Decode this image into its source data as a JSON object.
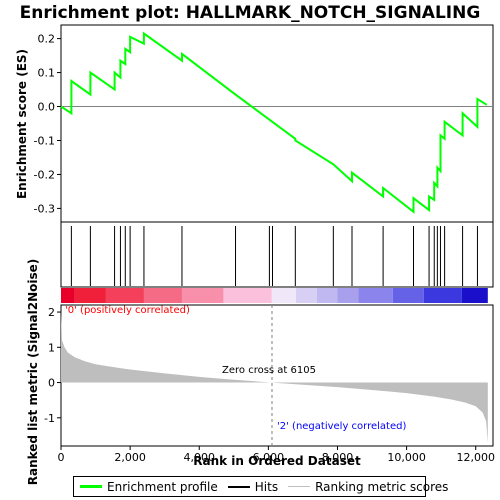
{
  "title": "Enrichment plot: HALLMARK_NOTCH_SIGNALING",
  "colors": {
    "enrichment": "#00ff00",
    "hits": "#000000",
    "metric_fill": "#bebebe",
    "positive_label": "#ff0000",
    "negative_label": "#0000ff",
    "zero_line": "#808080"
  },
  "chart_data": [
    {
      "type": "line",
      "name": "enrichment-profile",
      "ylabel": "Enrichment score (ES)",
      "xlim": [
        0,
        12500
      ],
      "ylim": [
        -0.34,
        0.24
      ],
      "yticks": [
        "0.2",
        "0.1",
        "0.0",
        "-0.1",
        "-0.2",
        "-0.3"
      ],
      "ytick_values": [
        0.2,
        0.1,
        0.0,
        -0.1,
        -0.2,
        -0.3
      ],
      "x": [
        0,
        300,
        300,
        850,
        850,
        1550,
        1550,
        1720,
        1720,
        1860,
        1860,
        2000,
        2000,
        2400,
        2400,
        3500,
        3500,
        5050,
        5050,
        6780,
        6780,
        7880,
        7880,
        8420,
        8420,
        9320,
        9320,
        10200,
        10200,
        10650,
        10650,
        10800,
        10800,
        10890,
        10890,
        10980,
        10980,
        11100,
        11100,
        11620,
        11620,
        12050,
        12050,
        12320
      ],
      "y": [
        0.0,
        -0.02,
        0.075,
        0.035,
        0.1,
        0.05,
        0.1,
        0.085,
        0.135,
        0.125,
        0.17,
        0.16,
        0.205,
        0.185,
        0.215,
        0.135,
        0.155,
        0.035,
        0.035,
        -0.095,
        -0.1,
        -0.17,
        -0.17,
        -0.22,
        -0.195,
        -0.265,
        -0.24,
        -0.31,
        -0.27,
        -0.305,
        -0.265,
        -0.275,
        -0.225,
        -0.235,
        -0.18,
        -0.19,
        -0.085,
        -0.095,
        -0.045,
        -0.085,
        -0.02,
        -0.06,
        0.022,
        0.005
      ]
    },
    {
      "type": "scatter",
      "name": "hits",
      "x": [
        300,
        850,
        1550,
        1720,
        1860,
        2000,
        2400,
        3500,
        5050,
        6030,
        6120,
        6780,
        7880,
        8420,
        9320,
        10200,
        10650,
        10800,
        10890,
        10980,
        11100,
        11620,
        12050
      ]
    },
    {
      "type": "area",
      "name": "ranked-metric",
      "xlabel": "Rank in Ordered Dataset",
      "ylabel": "Ranked list metric (Signal2Noise)",
      "xlim": [
        0,
        12500
      ],
      "ylim": [
        -1.8,
        2.2
      ],
      "x": [
        0,
        30,
        100,
        200,
        400,
        700,
        1000,
        1500,
        2000,
        3000,
        4000,
        5000,
        6105,
        7000,
        8000,
        9000,
        10000,
        10800,
        11300,
        11700,
        12000,
        12200,
        12300,
        12350
      ],
      "y": [
        2.05,
        1.2,
        1.0,
        0.85,
        0.72,
        0.6,
        0.52,
        0.44,
        0.37,
        0.26,
        0.16,
        0.08,
        0.0,
        -0.06,
        -0.13,
        -0.21,
        -0.3,
        -0.4,
        -0.48,
        -0.57,
        -0.67,
        -0.85,
        -1.1,
        -1.7
      ],
      "yticks": [
        "2",
        "1",
        "0",
        "-1"
      ],
      "ytick_values": [
        2,
        1,
        0,
        -1
      ],
      "xticks": [
        "0",
        "2,000",
        "4,000",
        "6,000",
        "8,000",
        "10,000",
        "12,000"
      ],
      "xtick_values": [
        0,
        2000,
        4000,
        6000,
        8000,
        10000,
        12000
      ],
      "zero_cross": 6105
    }
  ],
  "annotations": {
    "zero_cross": "Zero cross at 6105",
    "positive": "'0' (positively correlated)",
    "negative": "'2' (negatively correlated)"
  },
  "legend": {
    "profile": "Enrichment profile",
    "hits": "Hits",
    "metric": "Ranking metric scores"
  }
}
